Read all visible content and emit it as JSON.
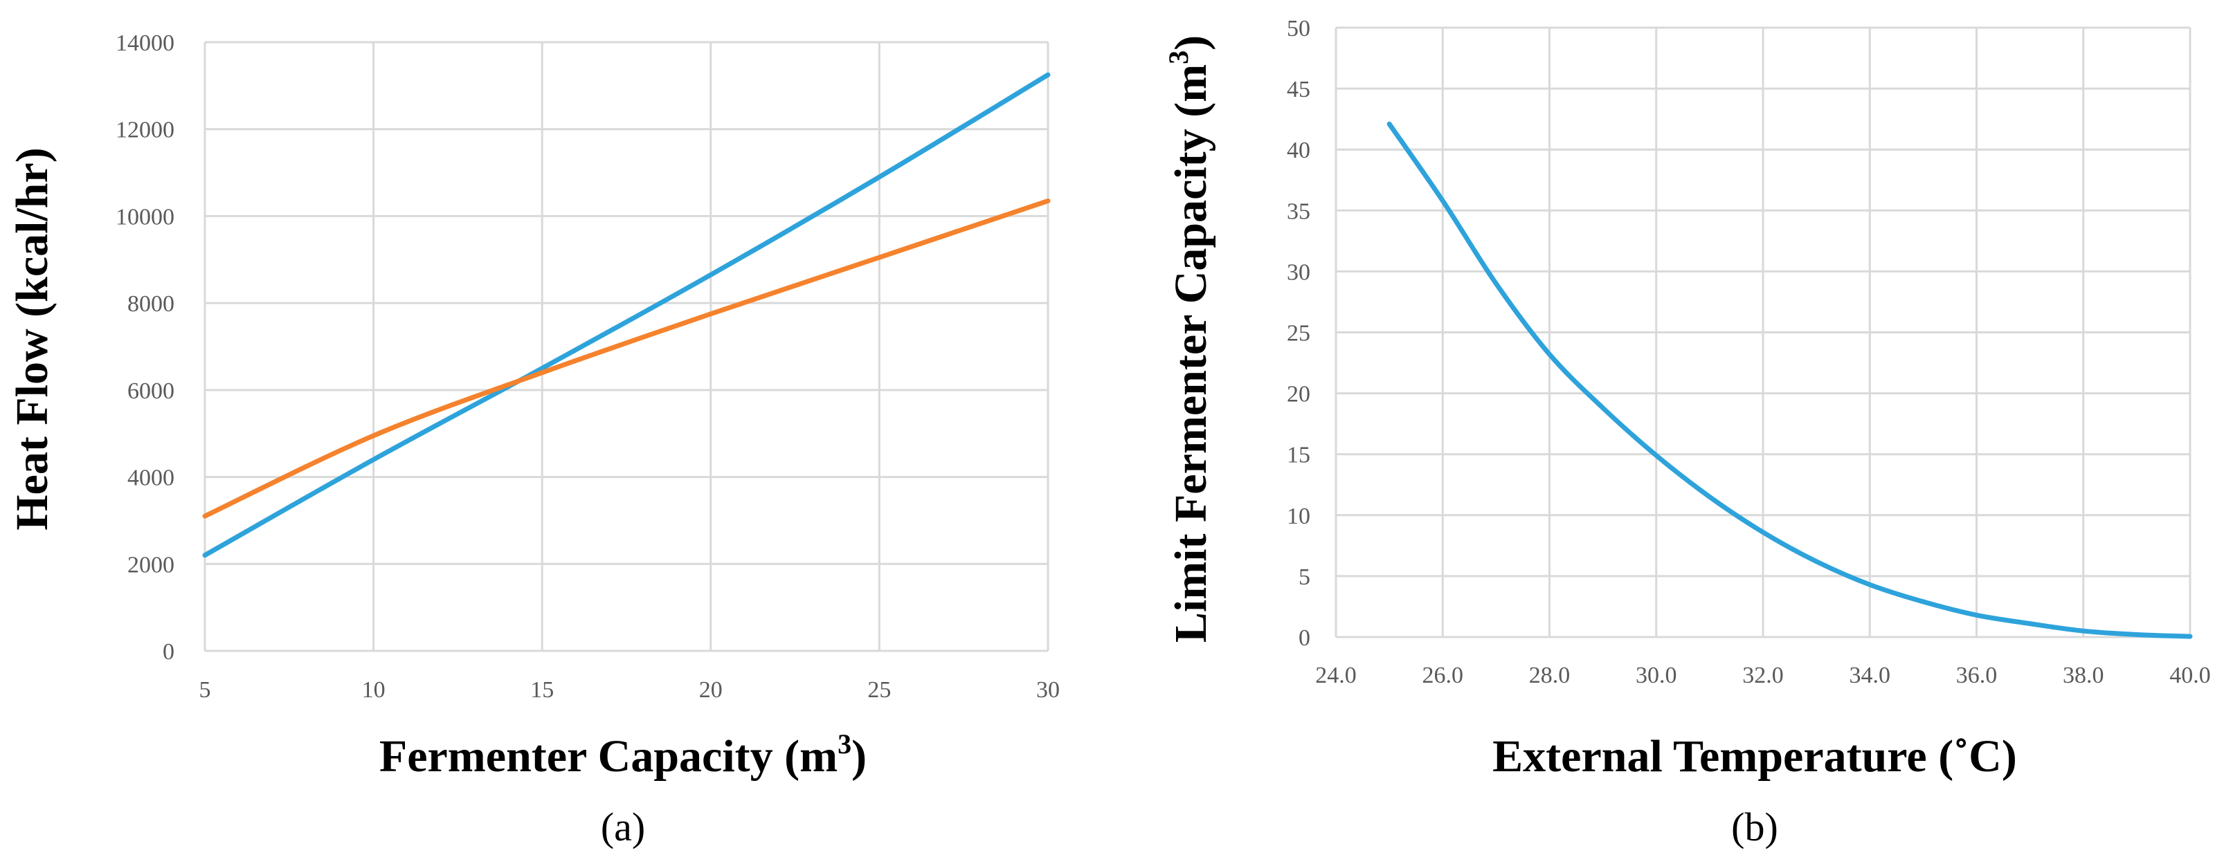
{
  "chart_data": [
    {
      "type": "line",
      "panel_label": "(a)",
      "title": "",
      "xlabel_text": "Fermenter Capacity (m",
      "xlabel_sup": "3",
      "xlabel_close": ")",
      "ylabel": "Heat Flow (kcal/hr)",
      "xlim": [
        5,
        30
      ],
      "ylim": [
        0,
        14000
      ],
      "x_ticks": [
        "5",
        "10",
        "15",
        "20",
        "25",
        "30"
      ],
      "y_ticks": [
        "0",
        "2000",
        "4000",
        "6000",
        "8000",
        "10000",
        "12000",
        "14000"
      ],
      "grid": true,
      "legend": "none",
      "series": [
        {
          "name": "blue",
          "color": "#2ea3db",
          "x": [
            5,
            10,
            15,
            20,
            25,
            30
          ],
          "y": [
            2200,
            4400,
            6500,
            8650,
            10900,
            13250
          ]
        },
        {
          "name": "orange",
          "color": "#f5822d",
          "x": [
            5,
            10,
            15,
            20,
            25,
            30
          ],
          "y": [
            3100,
            4950,
            6400,
            7750,
            9050,
            10350
          ]
        }
      ]
    },
    {
      "type": "line",
      "panel_label": "(b)",
      "title": "",
      "xlabel_text": "External Temperature (",
      "xlabel_degree": "˚",
      "xlabel_unit": "C)",
      "ylabel_text": "Limit Fermenter Capacity (m",
      "ylabel_sup": "3",
      "ylabel_close": ")",
      "xlim": [
        24,
        40
      ],
      "ylim": [
        0,
        50
      ],
      "x_ticks": [
        "24.0",
        "26.0",
        "28.0",
        "30.0",
        "32.0",
        "34.0",
        "36.0",
        "38.0",
        "40.0"
      ],
      "y_ticks": [
        "0",
        "5",
        "10",
        "15",
        "20",
        "25",
        "30",
        "35",
        "40",
        "45",
        "50"
      ],
      "grid": true,
      "legend": "none",
      "series": [
        {
          "name": "blue",
          "color": "#2ea3db",
          "x": [
            25,
            26,
            27,
            28,
            29,
            30,
            31,
            32,
            33,
            34,
            35,
            36,
            37,
            38,
            39,
            40
          ],
          "y": [
            42.1,
            35.8,
            29.0,
            23.2,
            18.8,
            14.9,
            11.5,
            8.6,
            6.2,
            4.3,
            2.9,
            1.8,
            1.1,
            0.5,
            0.2,
            0.05
          ]
        }
      ]
    }
  ]
}
